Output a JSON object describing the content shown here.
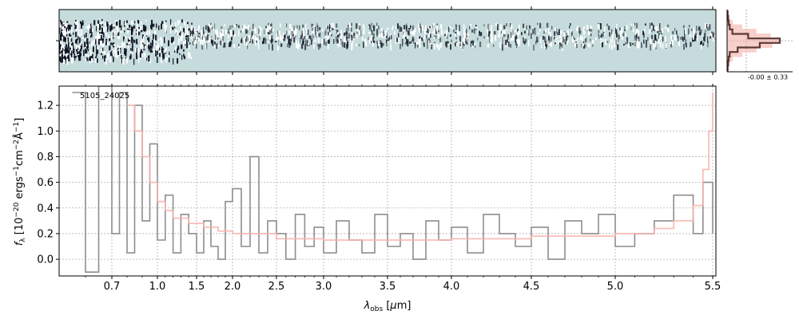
{
  "chart_data": [
    {
      "type": "heatmap",
      "panel": "2D spectrum",
      "description": "noisy 2D spectral trace with bright noisy region at blue end",
      "colors": {
        "background": "#c6dcdc",
        "dark": "#0a0f1e"
      }
    },
    {
      "type": "line",
      "panel": "spatial profile",
      "annotation": "-0.00 ± 0.33",
      "series": [
        {
          "values": [
            0.02,
            0.04,
            0.1,
            0.28,
            0.55,
            0.82,
            1.0,
            0.85,
            0.55,
            0.28,
            0.1,
            0.04,
            0.02
          ],
          "color": "#f4a9a0"
        },
        {
          "values": [
            0.01,
            0.02,
            0.03,
            0.05,
            0.1,
            0.4,
            1.0,
            0.62,
            0.2,
            0.05,
            0.03,
            0.02,
            0.01
          ],
          "color": "#5a3a36"
        }
      ]
    },
    {
      "type": "line",
      "panel": "1D spectrum",
      "label": "5105_24025",
      "xlabel": "λ_obs [μm]",
      "ylabel": "f_λ [10^-20 ergs^-1 cm^-2 Å^-1]",
      "x_scale": "piecewise (blue end compressed)",
      "xlim": [
        0.5,
        5.52
      ],
      "ylim": [
        -0.13,
        1.35
      ],
      "xticks": [
        0.7,
        1.0,
        1.5,
        2.0,
        2.5,
        3.0,
        3.5,
        4.0,
        4.5,
        5.0,
        5.5
      ],
      "xtick_labels": [
        "0.7",
        "1.0",
        "1.5",
        "2.0",
        "2.5",
        "3.0",
        "3.5",
        "4.0",
        "4.5",
        "5.0",
        "5.5"
      ],
      "yticks": [
        0.0,
        0.2,
        0.4,
        0.6,
        0.8,
        1.0,
        1.2
      ],
      "ytick_labels": [
        "0.0",
        "0.2",
        "0.4",
        "0.6",
        "0.8",
        "1.0",
        "1.2"
      ],
      "grid": true,
      "series": [
        {
          "style": "steps",
          "color": "#888888",
          "x": [
            0.55,
            0.6,
            0.65,
            0.7,
            0.75,
            0.8,
            0.85,
            0.9,
            0.95,
            1.0,
            1.1,
            1.2,
            1.3,
            1.4,
            1.5,
            1.6,
            1.7,
            1.8,
            1.9,
            2.0,
            2.1,
            2.2,
            2.3,
            2.4,
            2.5,
            2.6,
            2.7,
            2.8,
            2.9,
            3.0,
            3.1,
            3.2,
            3.3,
            3.4,
            3.5,
            3.6,
            3.7,
            3.8,
            3.9,
            4.0,
            4.1,
            4.2,
            4.3,
            4.4,
            4.5,
            4.6,
            4.7,
            4.8,
            4.9,
            5.0,
            5.1,
            5.2,
            5.3,
            5.4,
            5.45,
            5.5
          ],
          "y": [
            1.3,
            -0.1,
            1.35,
            0.2,
            1.3,
            0.05,
            1.2,
            0.3,
            0.9,
            0.15,
            0.5,
            0.05,
            0.35,
            0.2,
            0.05,
            0.3,
            0.1,
            0.0,
            0.45,
            0.55,
            0.1,
            0.8,
            0.05,
            0.3,
            0.2,
            0.0,
            0.35,
            0.1,
            0.25,
            0.05,
            0.3,
            0.15,
            0.05,
            0.35,
            0.1,
            0.2,
            0.0,
            0.3,
            0.15,
            0.25,
            0.05,
            0.35,
            0.2,
            0.1,
            0.25,
            0.0,
            0.3,
            0.2,
            0.35,
            0.1,
            0.2,
            0.3,
            0.5,
            0.2,
            0.6,
            0.2
          ]
        },
        {
          "style": "steps",
          "color": "#f7b3ad",
          "x": [
            0.8,
            0.85,
            0.9,
            0.95,
            1.0,
            1.1,
            1.2,
            1.4,
            1.6,
            1.8,
            2.0,
            2.5,
            3.0,
            3.5,
            4.0,
            4.5,
            5.0,
            5.2,
            5.3,
            5.4,
            5.45,
            5.48,
            5.5
          ],
          "y": [
            1.2,
            1.0,
            0.8,
            0.6,
            0.45,
            0.38,
            0.32,
            0.28,
            0.25,
            0.22,
            0.2,
            0.16,
            0.15,
            0.15,
            0.16,
            0.18,
            0.2,
            0.24,
            0.3,
            0.42,
            0.7,
            1.0,
            1.3
          ]
        }
      ]
    }
  ]
}
